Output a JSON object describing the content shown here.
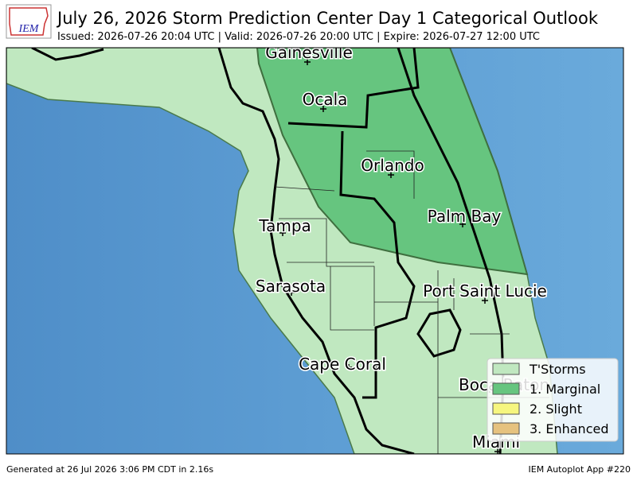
{
  "header": {
    "logo": "IEM",
    "title": "July 26, 2026 Storm Prediction Center Day 1 Categorical Outlook",
    "subtitle": "Issued: 2026-07-26 20:04 UTC | Valid: 2026-07-26 20:00 UTC | Expire: 2026-07-27 12:00 UTC"
  },
  "cities": [
    {
      "label": "Gainesville"
    },
    {
      "label": "Ocala"
    },
    {
      "label": "Orlando"
    },
    {
      "label": "Palm Bay"
    },
    {
      "label": "Tampa"
    },
    {
      "label": "Sarasota"
    },
    {
      "label": "Port Saint Lucie"
    },
    {
      "label": "Cape Coral"
    },
    {
      "label": "Boca Raton"
    },
    {
      "label": "Miami"
    }
  ],
  "legend": {
    "items": [
      {
        "label": "T'Storms",
        "color": "#c0e8c0"
      },
      {
        "label": "1. Marginal",
        "color": "#66c57f"
      },
      {
        "label": "2. Slight",
        "color": "#f6f67f"
      },
      {
        "label": "3. Enhanced",
        "color": "#e6c27f"
      }
    ]
  },
  "footer": {
    "left": "Generated at 26 Jul 2026 3:06 PM CDT in 2.16s",
    "right": "IEM Autoplot App #220"
  }
}
